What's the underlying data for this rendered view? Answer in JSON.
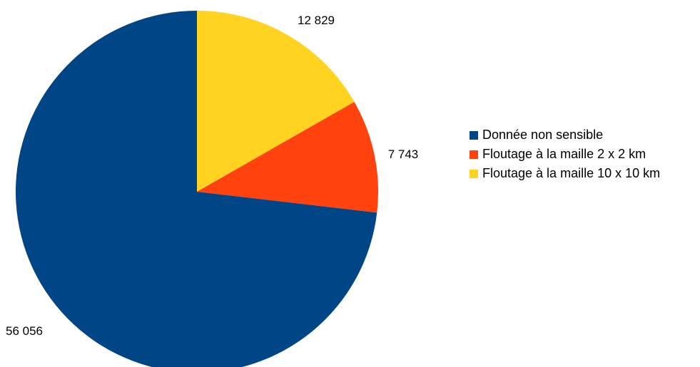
{
  "chart_data": {
    "type": "pie",
    "title": "",
    "slices": [
      {
        "label": "Floutage à la maille 10 x 10 km",
        "value": 12829,
        "display": "12 829",
        "color": "#ffd320"
      },
      {
        "label": "Floutage à la maille 2 x 2 km",
        "value": 7743,
        "display": "7 743",
        "color": "#ff420e"
      },
      {
        "label": "Donnée non sensible",
        "value": 56056,
        "display": "56 056",
        "color": "#004586"
      }
    ],
    "start": "top",
    "direction": "clockwise",
    "legend": {
      "position": "right",
      "items": [
        {
          "label": "Donnée non sensible",
          "color": "#004586"
        },
        {
          "label": "Floutage à la maille 2 x 2 km",
          "color": "#ff420e"
        },
        {
          "label": "Floutage à la maille 10 x 10 km",
          "color": "#ffd320"
        }
      ]
    }
  }
}
